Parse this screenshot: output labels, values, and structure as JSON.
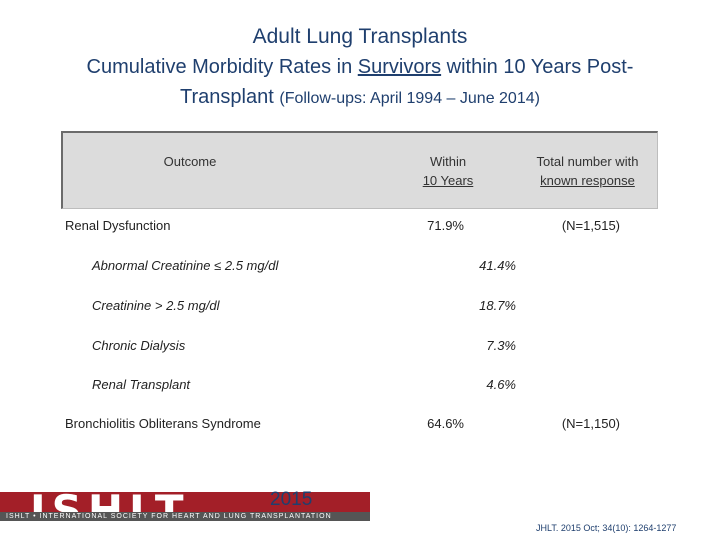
{
  "title": {
    "line1": "Adult Lung Transplants",
    "line2_pre": "Cumulative Morbidity Rates in ",
    "line2_underlined": "Survivors",
    "line2_post": " within 10 Years Post-",
    "line3_main": "Transplant ",
    "line3_small": "(Follow-ups: April 1994 – June 2014)"
  },
  "table": {
    "headers": {
      "outcome": "Outcome",
      "within_1": "Within",
      "within_2": "10 Years",
      "total_1": "Total number with",
      "total_2": "known response"
    },
    "rows": [
      {
        "label": "Renal Dysfunction",
        "value": "71.9%",
        "total": "(N=1,515)"
      },
      {
        "label": "Abnormal Creatinine ≤ 2.5 mg/dl",
        "value": "41.4%"
      },
      {
        "label": "Creatinine > 2.5 mg/dl",
        "value": "18.7%"
      },
      {
        "label": "Chronic Dialysis",
        "value": "7.3%"
      },
      {
        "label": "Renal Transplant",
        "value": "4.6%"
      },
      {
        "label": "Bronchiolitis Obliterans Syndrome",
        "value": "64.6%",
        "total": "(N=1,150)"
      }
    ]
  },
  "footer": {
    "logo": "ISHLT",
    "logo_subtitle": "ISHLT • INTERNATIONAL SOCIETY FOR HEART AND LUNG TRANSPLANTATION",
    "year": "2015",
    "citation": "JHLT. 2015 Oct; 34(10): 1264-1277"
  },
  "colors": {
    "title": "#1f3f6e",
    "logo_red": "#a31f28",
    "table_header_bg": "#dcdcdc"
  }
}
